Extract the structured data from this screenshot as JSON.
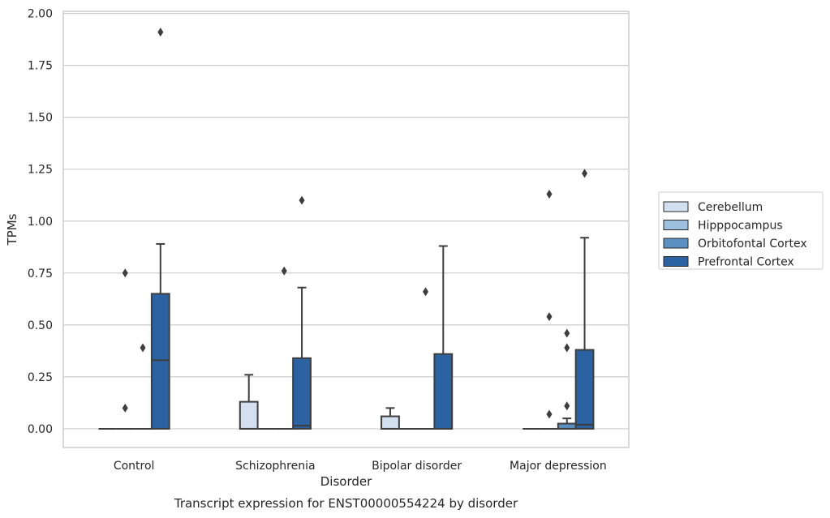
{
  "chart_data": {
    "type": "box",
    "title": "Transcript expression for ENST00000554224 by disorder",
    "xlabel": "Disorder",
    "ylabel": "TPMs",
    "ylim": [
      -0.09,
      2.01
    ],
    "yticks": [
      "0.00",
      "0.25",
      "0.50",
      "0.75",
      "1.00",
      "1.25",
      "1.50",
      "1.75",
      "2.00"
    ],
    "grid": true,
    "legend_position": "right",
    "categories": [
      "Control",
      "Schizophrenia",
      "Bipolar disorder",
      "Major depression"
    ],
    "series": [
      {
        "name": "Cerebellum",
        "color": "#d2e0f0",
        "boxes": [
          {
            "min": 0,
            "q1": 0,
            "median": 0,
            "q3": 0,
            "max": 0,
            "outliers": []
          },
          {
            "min": 0,
            "q1": 0,
            "median": 0,
            "q3": 0.13,
            "max": 0.26,
            "outliers": []
          },
          {
            "min": 0,
            "q1": 0,
            "median": 0,
            "q3": 0.06,
            "max": 0.1,
            "outliers": []
          },
          {
            "min": 0,
            "q1": 0,
            "median": 0,
            "q3": 0,
            "max": 0,
            "outliers": []
          }
        ]
      },
      {
        "name": "Hipppocampus",
        "color": "#9dc0de",
        "boxes": [
          {
            "min": 0,
            "q1": 0,
            "median": 0,
            "q3": 0,
            "max": 0,
            "outliers": [
              0.75,
              0.1
            ]
          },
          {
            "min": 0,
            "q1": 0,
            "median": 0,
            "q3": 0,
            "max": 0,
            "outliers": []
          },
          {
            "min": 0,
            "q1": 0,
            "median": 0,
            "q3": 0,
            "max": 0,
            "outliers": []
          },
          {
            "min": 0,
            "q1": 0,
            "median": 0,
            "q3": 0,
            "max": 0,
            "outliers": [
              1.13,
              0.54,
              0.07
            ]
          }
        ]
      },
      {
        "name": "Orbitofontal Cortex",
        "color": "#5a90c2",
        "boxes": [
          {
            "min": 0,
            "q1": 0,
            "median": 0,
            "q3": 0,
            "max": 0,
            "outliers": [
              0.39
            ]
          },
          {
            "min": 0,
            "q1": 0,
            "median": 0,
            "q3": 0,
            "max": 0,
            "outliers": [
              0.76
            ]
          },
          {
            "min": 0,
            "q1": 0,
            "median": 0,
            "q3": 0,
            "max": 0,
            "outliers": [
              0.66
            ]
          },
          {
            "min": 0,
            "q1": 0,
            "median": 0,
            "q3": 0.025,
            "max": 0.05,
            "outliers": [
              0.46,
              0.39,
              0.11
            ]
          }
        ]
      },
      {
        "name": "Prefrontal Cortex",
        "color": "#2a62a2",
        "boxes": [
          {
            "min": 0,
            "q1": 0,
            "median": 0.33,
            "q3": 0.65,
            "max": 0.89,
            "outliers": [
              1.91
            ]
          },
          {
            "min": 0,
            "q1": 0,
            "median": 0.015,
            "q3": 0.34,
            "max": 0.68,
            "outliers": [
              1.1
            ]
          },
          {
            "min": 0,
            "q1": 0,
            "median": 0,
            "q3": 0.36,
            "max": 0.88,
            "outliers": []
          },
          {
            "min": 0,
            "q1": 0,
            "median": 0.02,
            "q3": 0.38,
            "max": 0.92,
            "outliers": [
              1.23
            ]
          }
        ]
      }
    ]
  }
}
